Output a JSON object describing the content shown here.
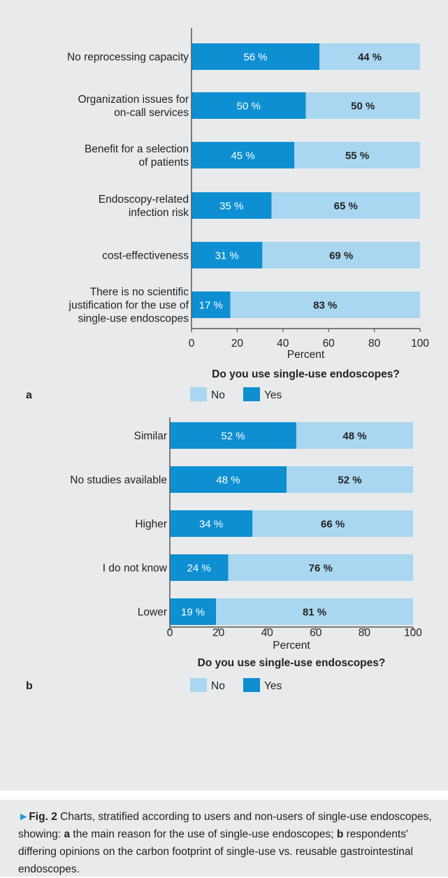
{
  "chart_data": [
    {
      "type": "bar",
      "panel_label": "a",
      "orientation": "horizontal",
      "stacked": true,
      "categories": [
        "No reprocessing capacity",
        "Organization issues for\non-call services",
        "Benefit for a selection\nof patients",
        "Endoscopy-related\ninfection risk",
        "cost-effectiveness",
        "There is no scientific\njustification for the use of\nsingle-use endoscopes"
      ],
      "series": [
        {
          "name": "Yes",
          "values": [
            56,
            50,
            45,
            35,
            31,
            17
          ]
        },
        {
          "name": "No",
          "values": [
            44,
            50,
            55,
            65,
            69,
            83
          ]
        }
      ],
      "bar_labels": [
        [
          "56 %",
          "44 %"
        ],
        [
          "50 %",
          "50 %"
        ],
        [
          "45 %",
          "55 %"
        ],
        [
          "35 %",
          "65 %"
        ],
        [
          "31 %",
          "69 %"
        ],
        [
          "17 %",
          "83 %"
        ]
      ],
      "xlabel": "Percent",
      "xlim": [
        0,
        100
      ],
      "xticks": [
        "0",
        "20",
        "40",
        "60",
        "80",
        "100"
      ],
      "legend_title": "Do you use single-use endoscopes?",
      "legend_position": "bottom",
      "grid": false
    },
    {
      "type": "bar",
      "panel_label": "b",
      "orientation": "horizontal",
      "stacked": true,
      "categories": [
        "Similar",
        "No studies available",
        "Higher",
        "I do not know",
        "Lower"
      ],
      "series": [
        {
          "name": "Yes",
          "values": [
            52,
            48,
            34,
            24,
            19
          ]
        },
        {
          "name": "No",
          "values": [
            48,
            52,
            66,
            76,
            81
          ]
        }
      ],
      "bar_labels": [
        [
          "52 %",
          "48 %"
        ],
        [
          "48 %",
          "52 %"
        ],
        [
          "34 %",
          "66 %"
        ],
        [
          "24 %",
          "76 %"
        ],
        [
          "19 %",
          "81 %"
        ]
      ],
      "xlabel": "Percent",
      "xlim": [
        0,
        100
      ],
      "xticks": [
        "0",
        "20",
        "40",
        "60",
        "80",
        "100"
      ],
      "legend_title": "Do you use single-use endoscopes?",
      "legend_position": "bottom",
      "grid": false
    }
  ],
  "legend_order": [
    "No",
    "Yes"
  ],
  "colors": {
    "yes": "#0e8fd2",
    "no": "#a9d6f0",
    "panel_bg": "#e9eaeb",
    "axis": "#555555",
    "caption_arrow": "#1a9ad6"
  },
  "caption": {
    "arrow": "►",
    "fig_label": "Fig. 2",
    "intro": " Charts, stratified according to users and non-users of single-use endoscopes, showing: ",
    "part_a_label": "a",
    "part_a_text": " the main reason for the use of single-use endoscopes; ",
    "part_b_label": "b",
    "part_b_text": " respondents' differing opinions on the carbon footprint of single-use vs. reusable gastrointestinal endoscopes."
  }
}
